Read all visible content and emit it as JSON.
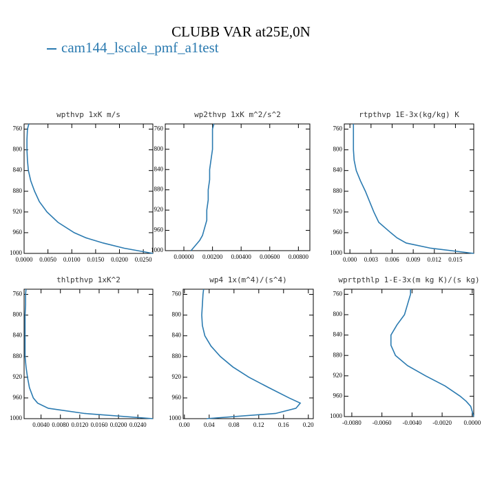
{
  "title": "CLUBB VAR at25E,0N",
  "series_name": "cam144_lscale_pmf_a1test",
  "color": "#2a7ab0",
  "chart_data": [
    {
      "type": "line",
      "title": "wpthvp  1xK m/s",
      "y": [
        750,
        760,
        780,
        800,
        820,
        840,
        860,
        880,
        900,
        920,
        940,
        960,
        970,
        980,
        990,
        1000
      ],
      "values": [
        0.001,
        0.0007,
        0.0006,
        0.0006,
        0.0007,
        0.0009,
        0.0014,
        0.0022,
        0.0032,
        0.0048,
        0.0071,
        0.0105,
        0.013,
        0.0166,
        0.021,
        0.027
      ],
      "xlim": [
        0,
        0.027
      ],
      "xticks": [
        {
          "value": 0,
          "label": "0.0000"
        },
        {
          "value": 0.005,
          "label": "0.0050"
        },
        {
          "value": 0.01,
          "label": "0.0100"
        },
        {
          "value": 0.015,
          "label": "0.0150"
        },
        {
          "value": 0.02,
          "label": "0.0200"
        },
        {
          "value": 0.025,
          "label": "0.0250"
        }
      ],
      "ylim": [
        1000,
        750
      ],
      "yticks": [
        760,
        800,
        840,
        880,
        920,
        960,
        1000
      ]
    },
    {
      "type": "line",
      "title": "wp2thvp  1xK m^2/s^2",
      "y": [
        750,
        760,
        780,
        800,
        820,
        840,
        860,
        880,
        900,
        920,
        940,
        960,
        970,
        980,
        990,
        1000
      ],
      "values": [
        0.0021,
        0.002,
        0.002,
        0.002,
        0.0019,
        0.0018,
        0.0018,
        0.0017,
        0.0017,
        0.0016,
        0.0016,
        0.0014,
        0.0013,
        0.0011,
        0.0008,
        0.0005
      ],
      "xlim": [
        -0.0013,
        0.0088
      ],
      "xticks": [
        {
          "value": 0,
          "label": "0.00000"
        },
        {
          "value": 0.002,
          "label": "0.00200"
        },
        {
          "value": 0.004,
          "label": "0.00400"
        },
        {
          "value": 0.006,
          "label": "0.00600"
        },
        {
          "value": 0.008,
          "label": "0.00800"
        }
      ],
      "ylim": [
        1000,
        750
      ],
      "yticks": [
        760,
        800,
        840,
        880,
        920,
        960,
        1000
      ]
    },
    {
      "type": "line",
      "title": "rtpthvp  1E-3x(kg/kg) K",
      "y": [
        750,
        760,
        780,
        800,
        820,
        840,
        860,
        880,
        900,
        920,
        940,
        960,
        970,
        980,
        990,
        1000
      ],
      "values": [
        0.0005,
        0.0005,
        0.0005,
        0.0005,
        0.0006,
        0.0009,
        0.0015,
        0.0022,
        0.0028,
        0.0034,
        0.0041,
        0.0058,
        0.0067,
        0.008,
        0.0115,
        0.0176
      ],
      "xlim": [
        -0.0008,
        0.0176
      ],
      "xticks": [
        {
          "value": 0,
          "label": "0.000"
        },
        {
          "value": 0.003,
          "label": "0.003"
        },
        {
          "value": 0.006,
          "label": "0.006"
        },
        {
          "value": 0.009,
          "label": "0.009"
        },
        {
          "value": 0.012,
          "label": "0.012"
        },
        {
          "value": 0.015,
          "label": "0.015"
        }
      ],
      "ylim": [
        1000,
        750
      ],
      "yticks": [
        760,
        800,
        840,
        880,
        920,
        960,
        1000
      ]
    },
    {
      "type": "line",
      "title": "thlpthvp  1xK^2",
      "y": [
        750,
        760,
        780,
        800,
        820,
        840,
        860,
        880,
        900,
        920,
        940,
        960,
        970,
        980,
        990,
        1000
      ],
      "values": [
        0.0009,
        0.0008,
        0.0008,
        0.0007,
        0.0007,
        0.0007,
        0.0007,
        0.0007,
        0.0009,
        0.0012,
        0.0016,
        0.0024,
        0.0033,
        0.0055,
        0.013,
        0.0271
      ],
      "xlim": [
        0.0005,
        0.0271
      ],
      "xticks": [
        {
          "value": 0.004,
          "label": "0.0040"
        },
        {
          "value": 0.008,
          "label": "0.0080"
        },
        {
          "value": 0.012,
          "label": "0.0120"
        },
        {
          "value": 0.016,
          "label": "0.0160"
        },
        {
          "value": 0.02,
          "label": "0.0200"
        },
        {
          "value": 0.024,
          "label": "0.0240"
        }
      ],
      "ylim": [
        1000,
        750
      ],
      "yticks": [
        760,
        800,
        840,
        880,
        920,
        960,
        1000
      ]
    },
    {
      "type": "line",
      "title": "wp4  1x(m^4)/(s^4)",
      "y": [
        750,
        760,
        780,
        800,
        820,
        840,
        860,
        880,
        900,
        920,
        940,
        960,
        970,
        980,
        990,
        1000
      ],
      "values": [
        0.031,
        0.03,
        0.029,
        0.028,
        0.029,
        0.033,
        0.043,
        0.058,
        0.078,
        0.104,
        0.136,
        0.169,
        0.187,
        0.18,
        0.147,
        0.036
      ],
      "xlim": [
        -0.002,
        0.208
      ],
      "xticks": [
        {
          "value": 0,
          "label": "0.00"
        },
        {
          "value": 0.04,
          "label": "0.04"
        },
        {
          "value": 0.08,
          "label": "0.08"
        },
        {
          "value": 0.12,
          "label": "0.12"
        },
        {
          "value": 0.16,
          "label": "0.16"
        },
        {
          "value": 0.2,
          "label": "0.20"
        }
      ],
      "ylim": [
        1000,
        750
      ],
      "yticks": [
        760,
        800,
        840,
        880,
        920,
        960,
        1000
      ]
    },
    {
      "type": "line",
      "title": "wprtpthlp  1-E-3x(m kg K)/(s kg)",
      "y": [
        750,
        760,
        780,
        800,
        820,
        840,
        860,
        880,
        900,
        920,
        940,
        960,
        970,
        980,
        990,
        1000
      ],
      "values": [
        -0.0041,
        -0.0041,
        -0.0043,
        -0.0045,
        -0.005,
        -0.0054,
        -0.0054,
        -0.0051,
        -0.0043,
        -0.0031,
        -0.0018,
        -0.0008,
        -0.0004,
        -0.0001,
        0.0,
        0.0001
      ],
      "xlim": [
        -0.0085,
        0.0001
      ],
      "xticks": [
        {
          "value": -0.008,
          "label": "-0.0080"
        },
        {
          "value": -0.006,
          "label": "-0.0060"
        },
        {
          "value": -0.004,
          "label": "-0.0040"
        },
        {
          "value": -0.002,
          "label": "-0.0020"
        },
        {
          "value": 0,
          "label": "0.0000"
        }
      ],
      "ylim": [
        1000,
        750
      ],
      "yticks": [
        760,
        800,
        840,
        880,
        920,
        960,
        1000
      ]
    }
  ]
}
